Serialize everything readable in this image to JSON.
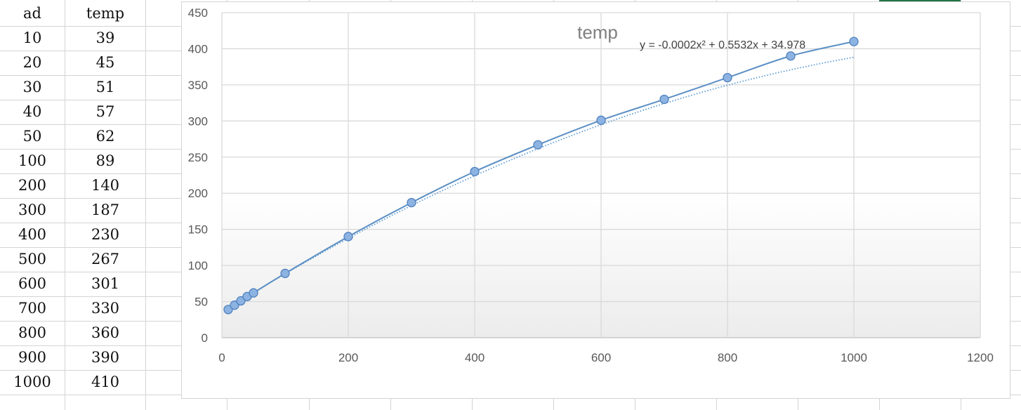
{
  "table": {
    "headers": [
      "ad",
      "temp"
    ],
    "rows": [
      [
        "10",
        "39"
      ],
      [
        "20",
        "45"
      ],
      [
        "30",
        "51"
      ],
      [
        "40",
        "57"
      ],
      [
        "50",
        "62"
      ],
      [
        "100",
        "89"
      ],
      [
        "200",
        "140"
      ],
      [
        "300",
        "187"
      ],
      [
        "400",
        "230"
      ],
      [
        "500",
        "267"
      ],
      [
        "600",
        "301"
      ],
      [
        "700",
        "330"
      ],
      [
        "800",
        "360"
      ],
      [
        "900",
        "390"
      ],
      [
        "1000",
        "410"
      ]
    ]
  },
  "chart_data": {
    "type": "scatter",
    "title": "temp",
    "xlabel": "",
    "ylabel": "",
    "xlim": [
      0,
      1200
    ],
    "ylim": [
      0,
      450
    ],
    "xticks": [
      0,
      200,
      400,
      600,
      800,
      1000,
      1200
    ],
    "yticks": [
      0,
      50,
      100,
      150,
      200,
      250,
      300,
      350,
      400,
      450
    ],
    "grid": true,
    "legend": "none",
    "series": [
      {
        "x": [
          10,
          20,
          30,
          40,
          50,
          100,
          200,
          300,
          400,
          500,
          600,
          700,
          800,
          900,
          1000
        ],
        "y": [
          39,
          45,
          51,
          57,
          62,
          89,
          140,
          187,
          230,
          267,
          301,
          330,
          360,
          390,
          410
        ],
        "color": "#8db3e2",
        "line_color": "#5b8fc4",
        "smooth_line": true
      }
    ],
    "trendline": {
      "type": "polynomial",
      "order": 2,
      "coefficients": [
        -0.0002,
        0.5532,
        34.978
      ],
      "label": "y = -0.0002x² + 0.5532x + 34.978",
      "color": "#5b9bd5",
      "style": "dotted"
    }
  }
}
